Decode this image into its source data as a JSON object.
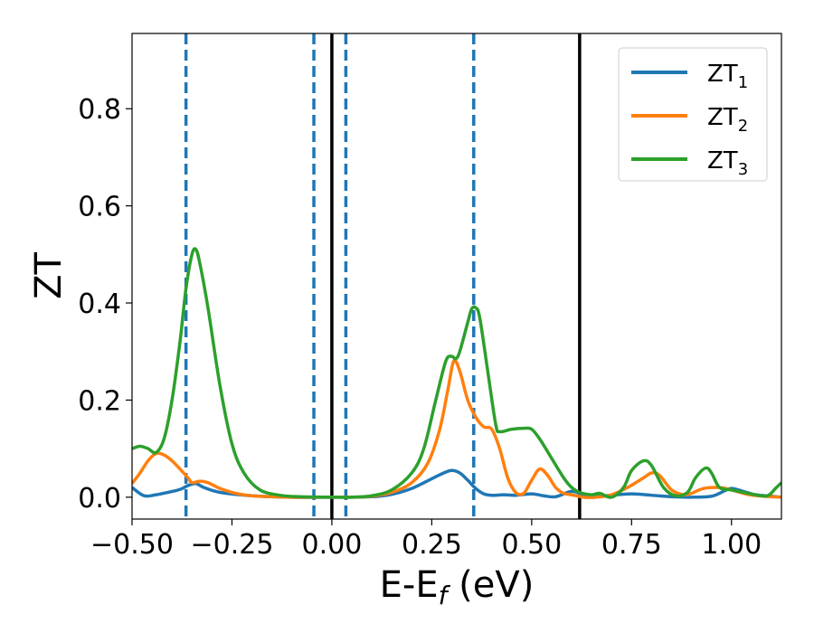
{
  "chart_data": {
    "type": "line",
    "xlabel_main": "E-E",
    "xlabel_sub": "f",
    "xlabel_unit": " (eV)",
    "ylabel": "ZT",
    "xlim": [
      -0.5,
      1.125
    ],
    "ylim": [
      -0.045,
      0.955
    ],
    "x_ticks": [
      -0.5,
      -0.25,
      0.0,
      0.25,
      0.5,
      0.75,
      1.0
    ],
    "x_tick_labels": [
      "−0.50",
      "−0.25",
      "0.00",
      "0.25",
      "0.50",
      "0.75",
      "1.00"
    ],
    "y_ticks": [
      0.0,
      0.2,
      0.4,
      0.6,
      0.8
    ],
    "y_tick_labels": [
      "0.0",
      "0.2",
      "0.4",
      "0.6",
      "0.8"
    ],
    "grid": false,
    "legend_position": "top-right",
    "solid_vlines": [
      0.0,
      0.62
    ],
    "dashed_vlines": [
      -0.365,
      -0.045,
      0.035,
      0.355
    ],
    "series": [
      {
        "name": "ZT",
        "subscript": "1",
        "color": "#1f77b4",
        "points": [
          [
            -0.5,
            0.02
          ],
          [
            -0.47,
            0.003
          ],
          [
            -0.44,
            0.005
          ],
          [
            -0.41,
            0.01
          ],
          [
            -0.38,
            0.016
          ],
          [
            -0.36,
            0.024
          ],
          [
            -0.34,
            0.028
          ],
          [
            -0.32,
            0.02
          ],
          [
            -0.28,
            0.01
          ],
          [
            -0.2,
            0.003
          ],
          [
            -0.1,
            0.0
          ],
          [
            0.0,
            0.0
          ],
          [
            0.1,
            0.001
          ],
          [
            0.15,
            0.006
          ],
          [
            0.2,
            0.018
          ],
          [
            0.25,
            0.038
          ],
          [
            0.28,
            0.05
          ],
          [
            0.3,
            0.055
          ],
          [
            0.32,
            0.05
          ],
          [
            0.34,
            0.035
          ],
          [
            0.36,
            0.018
          ],
          [
            0.38,
            0.007
          ],
          [
            0.4,
            0.004
          ],
          [
            0.43,
            0.005
          ],
          [
            0.46,
            0.004
          ],
          [
            0.5,
            0.007
          ],
          [
            0.53,
            0.003
          ],
          [
            0.56,
            0.001
          ],
          [
            0.6,
            0.012
          ],
          [
            0.63,
            0.005
          ],
          [
            0.66,
            0.002
          ],
          [
            0.7,
            0.004
          ],
          [
            0.75,
            0.007
          ],
          [
            0.8,
            0.004
          ],
          [
            0.85,
            0.001
          ],
          [
            0.9,
            0.0
          ],
          [
            0.95,
            0.002
          ],
          [
            0.98,
            0.012
          ],
          [
            1.0,
            0.018
          ],
          [
            1.03,
            0.012
          ],
          [
            1.06,
            0.005
          ],
          [
            1.1,
            0.002
          ],
          [
            1.125,
            0.0
          ]
        ]
      },
      {
        "name": "ZT",
        "subscript": "2",
        "color": "#ff7f0e",
        "points": [
          [
            -0.5,
            0.028
          ],
          [
            -0.48,
            0.05
          ],
          [
            -0.46,
            0.075
          ],
          [
            -0.44,
            0.09
          ],
          [
            -0.42,
            0.087
          ],
          [
            -0.4,
            0.075
          ],
          [
            -0.38,
            0.058
          ],
          [
            -0.36,
            0.04
          ],
          [
            -0.35,
            0.03
          ],
          [
            -0.33,
            0.033
          ],
          [
            -0.31,
            0.03
          ],
          [
            -0.28,
            0.018
          ],
          [
            -0.24,
            0.008
          ],
          [
            -0.2,
            0.003
          ],
          [
            -0.15,
            0.001
          ],
          [
            -0.1,
            0.0
          ],
          [
            0.0,
            0.0
          ],
          [
            0.05,
            0.0
          ],
          [
            0.1,
            0.002
          ],
          [
            0.15,
            0.01
          ],
          [
            0.2,
            0.03
          ],
          [
            0.24,
            0.07
          ],
          [
            0.27,
            0.14
          ],
          [
            0.29,
            0.22
          ],
          [
            0.305,
            0.28
          ],
          [
            0.32,
            0.26
          ],
          [
            0.34,
            0.2
          ],
          [
            0.36,
            0.165
          ],
          [
            0.38,
            0.145
          ],
          [
            0.4,
            0.14
          ],
          [
            0.42,
            0.1
          ],
          [
            0.44,
            0.04
          ],
          [
            0.46,
            0.01
          ],
          [
            0.48,
            0.008
          ],
          [
            0.5,
            0.035
          ],
          [
            0.52,
            0.058
          ],
          [
            0.54,
            0.045
          ],
          [
            0.56,
            0.02
          ],
          [
            0.58,
            0.008
          ],
          [
            0.6,
            0.005
          ],
          [
            0.63,
            0.0
          ],
          [
            0.66,
            0.0
          ],
          [
            0.7,
            0.005
          ],
          [
            0.74,
            0.02
          ],
          [
            0.78,
            0.04
          ],
          [
            0.8,
            0.05
          ],
          [
            0.82,
            0.045
          ],
          [
            0.85,
            0.015
          ],
          [
            0.88,
            0.005
          ],
          [
            0.9,
            0.008
          ],
          [
            0.93,
            0.018
          ],
          [
            0.97,
            0.02
          ],
          [
            1.0,
            0.015
          ],
          [
            1.04,
            0.006
          ],
          [
            1.08,
            0.002
          ],
          [
            1.125,
            0.0
          ]
        ]
      },
      {
        "name": "ZT",
        "subscript": "3",
        "color": "#2ca02c",
        "points": [
          [
            -0.5,
            0.1
          ],
          [
            -0.48,
            0.105
          ],
          [
            -0.46,
            0.1
          ],
          [
            -0.44,
            0.092
          ],
          [
            -0.42,
            0.12
          ],
          [
            -0.4,
            0.2
          ],
          [
            -0.38,
            0.32
          ],
          [
            -0.365,
            0.43
          ],
          [
            -0.35,
            0.5
          ],
          [
            -0.34,
            0.51
          ],
          [
            -0.33,
            0.48
          ],
          [
            -0.31,
            0.39
          ],
          [
            -0.28,
            0.23
          ],
          [
            -0.25,
            0.11
          ],
          [
            -0.22,
            0.05
          ],
          [
            -0.18,
            0.015
          ],
          [
            -0.13,
            0.004
          ],
          [
            -0.08,
            0.001
          ],
          [
            0.0,
            0.0
          ],
          [
            0.05,
            0.0
          ],
          [
            0.1,
            0.003
          ],
          [
            0.15,
            0.015
          ],
          [
            0.2,
            0.05
          ],
          [
            0.23,
            0.1
          ],
          [
            0.26,
            0.2
          ],
          [
            0.285,
            0.28
          ],
          [
            0.3,
            0.29
          ],
          [
            0.31,
            0.285
          ],
          [
            0.32,
            0.3
          ],
          [
            0.34,
            0.36
          ],
          [
            0.35,
            0.388
          ],
          [
            0.36,
            0.39
          ],
          [
            0.37,
            0.37
          ],
          [
            0.39,
            0.26
          ],
          [
            0.41,
            0.15
          ],
          [
            0.42,
            0.135
          ],
          [
            0.45,
            0.14
          ],
          [
            0.48,
            0.142
          ],
          [
            0.5,
            0.14
          ],
          [
            0.52,
            0.12
          ],
          [
            0.55,
            0.08
          ],
          [
            0.58,
            0.04
          ],
          [
            0.6,
            0.02
          ],
          [
            0.62,
            0.01
          ],
          [
            0.65,
            0.005
          ],
          [
            0.67,
            0.008
          ],
          [
            0.7,
            0.0
          ],
          [
            0.73,
            0.02
          ],
          [
            0.75,
            0.055
          ],
          [
            0.78,
            0.075
          ],
          [
            0.8,
            0.065
          ],
          [
            0.83,
            0.02
          ],
          [
            0.86,
            0.003
          ],
          [
            0.89,
            0.01
          ],
          [
            0.91,
            0.04
          ],
          [
            0.935,
            0.06
          ],
          [
            0.95,
            0.05
          ],
          [
            0.97,
            0.02
          ],
          [
            1.0,
            0.015
          ],
          [
            1.03,
            0.01
          ],
          [
            1.06,
            0.005
          ],
          [
            1.09,
            0.003
          ],
          [
            1.11,
            0.018
          ],
          [
            1.125,
            0.03
          ]
        ]
      }
    ]
  }
}
